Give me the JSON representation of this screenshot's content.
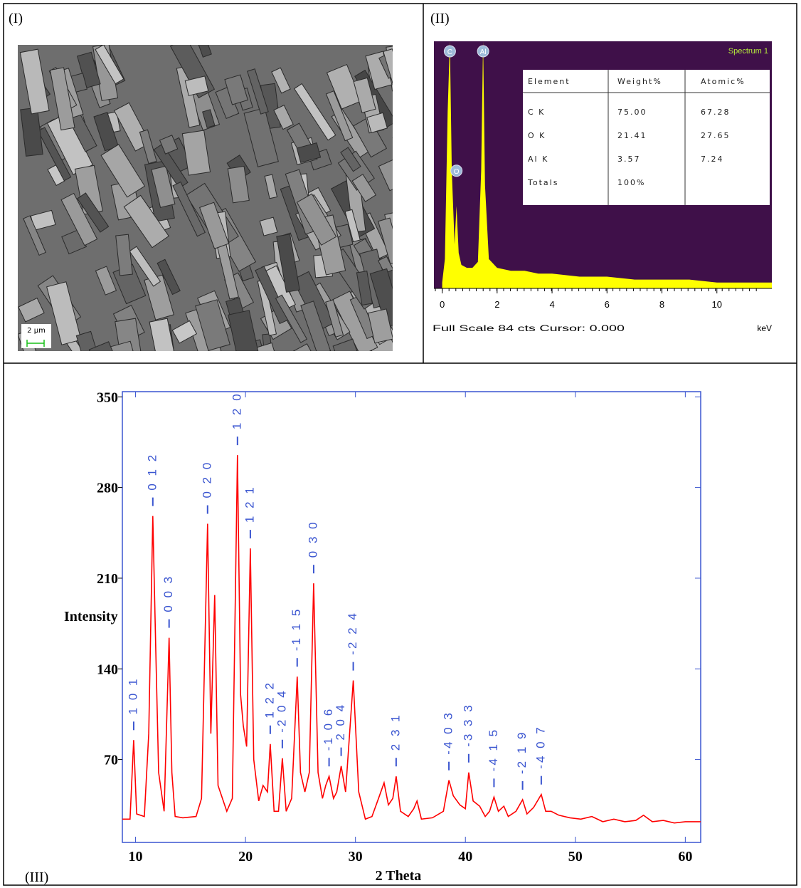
{
  "labels": [
    "(I)",
    "(II)",
    "(III)"
  ],
  "sem_image": {
    "scale_bar": "2 µm"
  },
  "eds_table": {
    "header": [
      "Element",
      "Weight%",
      "Atomic%"
    ],
    "rows": [
      [
        "C K",
        "75.00",
        "67.28"
      ],
      [
        "O K",
        "21.41",
        "27.65"
      ],
      [
        "Al K",
        "3.57",
        "7.24"
      ],
      [
        "Totals",
        "100%"
      ]
    ]
  },
  "chart_data": [
    {
      "type": "line",
      "title": "Spectrum 1",
      "footer": "Full Scale 84 cts Cursor: 0.000",
      "x_label": "keV",
      "x": [
        0,
        0.1,
        0.2,
        0.28,
        0.35,
        0.45,
        0.52,
        0.6,
        0.7,
        0.9,
        1.1,
        1.3,
        1.42,
        1.49,
        1.56,
        1.7,
        2.0,
        2.5,
        3,
        3.5,
        4,
        5,
        6,
        7,
        8,
        9,
        10,
        11,
        12
      ],
      "values": [
        2,
        10,
        60,
        84,
        40,
        15,
        28,
        12,
        8,
        7,
        7,
        9,
        40,
        84,
        35,
        10,
        7,
        6,
        6,
        5,
        5,
        4,
        4,
        3,
        3,
        3,
        2,
        2,
        2
      ],
      "color": "#ffff00",
      "xlim": [
        -0.3,
        12
      ],
      "ylim": [
        0,
        84
      ],
      "xticks": [
        0,
        2,
        4,
        6,
        8,
        10
      ],
      "annotations": [
        {
          "text": "C",
          "x": 0.28
        },
        {
          "text": "O",
          "x": 0.52
        },
        {
          "text": "Al",
          "x": 1.49
        }
      ]
    },
    {
      "type": "line",
      "x_label": "2 Theta",
      "y_label": "Intensity",
      "x": [
        8.8,
        9.5,
        9.83,
        10.1,
        10.8,
        11.2,
        11.57,
        11.83,
        12.1,
        12.6,
        13.05,
        13.3,
        13.6,
        14.3,
        15.5,
        16.0,
        16.55,
        16.85,
        17.2,
        17.5,
        18.3,
        18.8,
        19.27,
        19.55,
        19.8,
        20.1,
        20.44,
        20.75,
        21.2,
        21.6,
        22.0,
        22.25,
        22.6,
        23.0,
        23.35,
        23.7,
        24.2,
        24.7,
        25.0,
        25.4,
        25.8,
        26.2,
        26.6,
        27.0,
        27.3,
        27.6,
        28.0,
        28.3,
        28.7,
        29.1,
        29.8,
        30.3,
        30.9,
        31.5,
        32.1,
        32.6,
        33.0,
        33.4,
        33.7,
        34.1,
        34.8,
        35.3,
        35.6,
        36.0,
        37.0,
        38.0,
        38.5,
        38.9,
        39.5,
        40.0,
        40.3,
        40.7,
        41.3,
        41.8,
        42.2,
        42.6,
        43.0,
        43.5,
        43.9,
        44.6,
        45.2,
        45.6,
        46.2,
        46.9,
        47.3,
        47.8,
        48.5,
        49.5,
        50.5,
        51.5,
        52.5,
        53.5,
        54.5,
        55.5,
        56.2,
        57.0,
        58.0,
        59.0,
        60.0,
        61.0,
        61.4
      ],
      "values": [
        24,
        24,
        85,
        28,
        26,
        90,
        258,
        159,
        60,
        30,
        164,
        60,
        26,
        25,
        26,
        40,
        252,
        90,
        197,
        50,
        30,
        40,
        305,
        120,
        96,
        80,
        233,
        70,
        38,
        50,
        45,
        82,
        30,
        30,
        71,
        30,
        40,
        134,
        60,
        45,
        60,
        206,
        60,
        40,
        50,
        57,
        40,
        45,
        65,
        45,
        131,
        45,
        24,
        26,
        40,
        52,
        35,
        40,
        57,
        30,
        26,
        32,
        38,
        24,
        25,
        30,
        54,
        42,
        35,
        32,
        60,
        38,
        34,
        26,
        30,
        41,
        30,
        34,
        26,
        30,
        39,
        28,
        33,
        43,
        30,
        30,
        27,
        25,
        24,
        26,
        22,
        24,
        22,
        23,
        27,
        22,
        23,
        21,
        22,
        22,
        22
      ],
      "color": "#ff0000",
      "xlim": [
        8.8,
        61.4
      ],
      "ylim": [
        6,
        354
      ],
      "xticks": [
        10,
        20,
        30,
        40,
        50,
        60
      ],
      "yticks": [
        70,
        140,
        210,
        280,
        350
      ],
      "annotations": [
        {
          "text": "1 0 1",
          "x": 9.83
        },
        {
          "text": "0 1 2",
          "x": 11.57
        },
        {
          "text": "0 0 3",
          "x": 13.05
        },
        {
          "text": "0 2 0",
          "x": 16.55
        },
        {
          "text": "1 2 0",
          "x": 19.27
        },
        {
          "text": "1 2 1",
          "x": 20.44
        },
        {
          "text": "1 2 2",
          "x": 22.25
        },
        {
          "text": "-2 0 4",
          "x": 23.35
        },
        {
          "text": "-1 1 5",
          "x": 24.7
        },
        {
          "text": "0 3 0",
          "x": 26.2
        },
        {
          "text": "-1 0 6",
          "x": 27.6
        },
        {
          "text": "2 0 4",
          "x": 28.7
        },
        {
          "text": "-2 2 4",
          "x": 29.8
        },
        {
          "text": "2 3 1",
          "x": 33.7
        },
        {
          "text": "-4 0 3",
          "x": 38.5
        },
        {
          "text": "-3 3 3",
          "x": 40.3
        },
        {
          "text": "-4 1 5",
          "x": 42.6
        },
        {
          "text": "-2 1 9",
          "x": 45.2
        },
        {
          "text": "-4 0 7",
          "x": 46.9
        }
      ]
    }
  ]
}
